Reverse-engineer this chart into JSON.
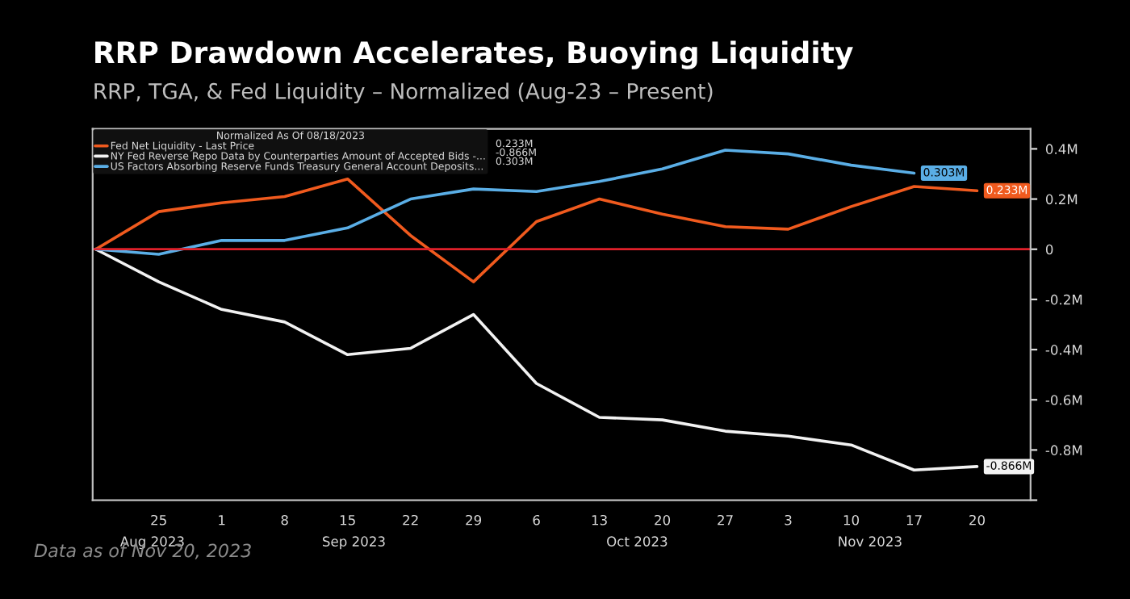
{
  "chart_data": {
    "type": "line",
    "title": "RRP Drawdown Accelerates, Buoying Liquidity",
    "subtitle": "RRP, TGA, & Fed Liquidity – Normalized (Aug-23 – Present)",
    "categories": [
      null,
      "25",
      "1",
      "8",
      "15",
      "22",
      "29",
      "6",
      "13",
      "20",
      "27",
      "3",
      "10",
      "17",
      "20"
    ],
    "series": [
      {
        "name": "Fed Net Liquidity - Last Price",
        "color": "#f05a1e",
        "values": [
          0,
          0.15,
          0.185,
          0.21,
          0.28,
          0.055,
          -0.13,
          0.11,
          0.2,
          0.14,
          0.09,
          0.08,
          0.17,
          0.25,
          0.233
        ],
        "value_labels": [
          null,
          null,
          null,
          null,
          null,
          null,
          null,
          null,
          null,
          null,
          null,
          null,
          null,
          null,
          "0.233M"
        ]
      },
      {
        "name": "NY Fed Reverse Repo Data by Counterparties Amount of Accepted Bids -...",
        "color": "#f2f2f2",
        "values": [
          0,
          -0.13,
          -0.24,
          -0.29,
          -0.42,
          -0.395,
          -0.26,
          -0.535,
          -0.67,
          -0.68,
          -0.725,
          -0.745,
          -0.78,
          -0.88,
          -0.866
        ],
        "value_labels": [
          null,
          null,
          null,
          null,
          null,
          null,
          null,
          null,
          null,
          null,
          null,
          null,
          null,
          null,
          "-0.866M"
        ]
      },
      {
        "name": "US Factors Absorbing Reserve Funds Treasury General Account Deposits...",
        "color": "#5aaee6",
        "values": [
          0,
          -0.02,
          0.035,
          0.035,
          0.085,
          0.2,
          0.24,
          0.23,
          0.27,
          0.32,
          0.395,
          0.38,
          0.335,
          0.303,
          null
        ],
        "value_labels": [
          null,
          null,
          null,
          null,
          null,
          null,
          null,
          null,
          null,
          null,
          null,
          null,
          null,
          "0.303M",
          null
        ]
      }
    ],
    "legend_title": "Normalized As Of 08/18/2023",
    "legend": "top left",
    "ylim": [
      -1.0,
      0.48
    ],
    "yticks": [
      {
        "value": 0.4,
        "label": "0.4M"
      },
      {
        "value": 0.2,
        "label": "0.2M"
      },
      0,
      {
        "value": -0.2,
        "label": "-0.2M"
      },
      {
        "value": -0.4,
        "label": "-0.4M"
      },
      {
        "value": -0.6,
        "label": "-0.6M"
      },
      {
        "value": -0.8,
        "label": "-0.8M"
      },
      {
        "value": -1.0,
        "label": null
      }
    ],
    "ref_lines": [
      {
        "axis": "y",
        "value": 0,
        "color": "#e0202a"
      }
    ],
    "grid": false,
    "marker": "none",
    "line_style": "solid",
    "annotations": [
      "Aug 2023",
      "Sep 2023",
      "Oct 2023",
      "Nov 2023",
      "Data as of Nov 20, 2023"
    ]
  }
}
